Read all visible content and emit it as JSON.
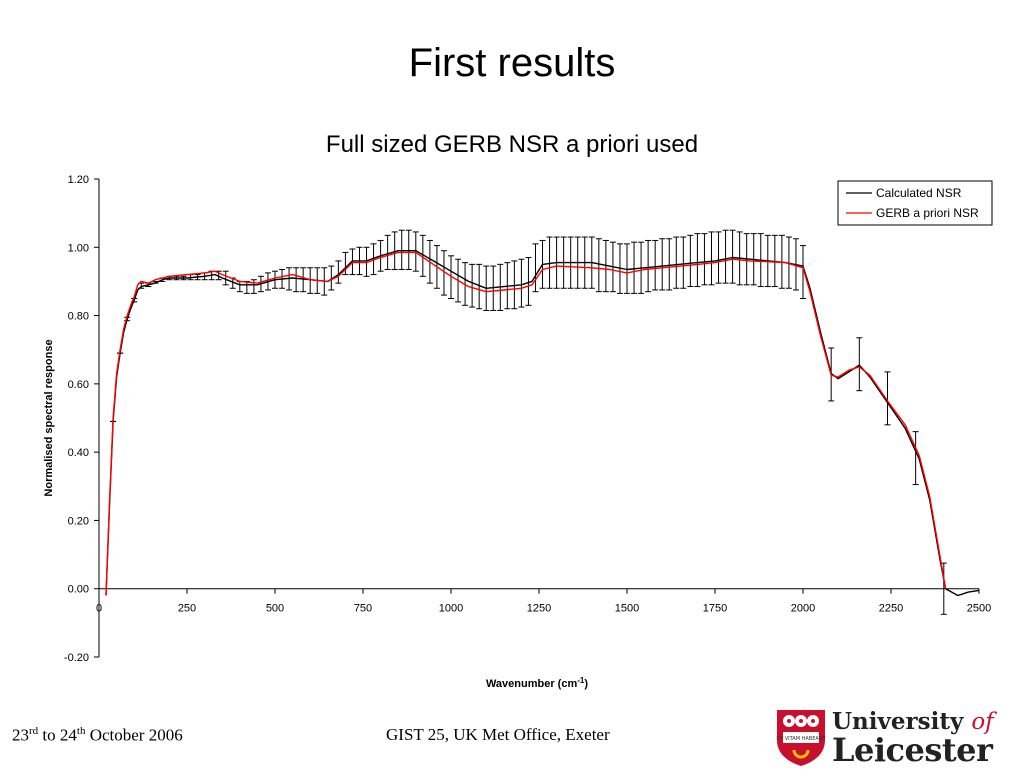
{
  "slide": {
    "title": "First results",
    "footer_left": {
      "day1": "23",
      "sup1": "rd",
      "mid": " to 24",
      "sup2": "th",
      "rest": " October 2006"
    },
    "footer_center": "GIST 25, UK Met Office, Exeter",
    "logo": {
      "line1": "University",
      "line1_of": "of",
      "line2": "Leicester",
      "shield_text": "UT VITAM HABEANT"
    }
  },
  "chart_data": {
    "type": "line",
    "title": "Full sized GERB NSR a priori used",
    "xlabel": "Wavenumber (cm",
    "xlabel_sup": "-1",
    "xlabel_end": ")",
    "ylabel": "Normalised spectral response",
    "xlim": [
      0,
      2500
    ],
    "ylim": [
      -0.2,
      1.2
    ],
    "xticks": [
      "0",
      "250",
      "500",
      "750",
      "1000",
      "1250",
      "1500",
      "1750",
      "2000",
      "2250",
      "2500"
    ],
    "yticks": [
      "1.20",
      "1.00",
      "0.80",
      "0.60",
      "0.40",
      "0.20",
      "0.00",
      "-0.20"
    ],
    "legend_position": "top-right",
    "grid": false,
    "series": [
      {
        "name": "Calculated NSR",
        "color": "#000000",
        "points": [
          [
            20,
            -0.02
          ],
          [
            30,
            0.25
          ],
          [
            40,
            0.49
          ],
          [
            50,
            0.62
          ],
          [
            60,
            0.69
          ],
          [
            70,
            0.75
          ],
          [
            80,
            0.79
          ],
          [
            90,
            0.82
          ],
          [
            100,
            0.845
          ],
          [
            110,
            0.875
          ],
          [
            120,
            0.885
          ],
          [
            140,
            0.89
          ],
          [
            160,
            0.895
          ],
          [
            180,
            0.905
          ],
          [
            200,
            0.91
          ],
          [
            250,
            0.91
          ],
          [
            300,
            0.915
          ],
          [
            330,
            0.92
          ],
          [
            350,
            0.91
          ],
          [
            400,
            0.89
          ],
          [
            450,
            0.89
          ],
          [
            500,
            0.905
          ],
          [
            550,
            0.91
          ],
          [
            600,
            0.905
          ],
          [
            650,
            0.9
          ],
          [
            680,
            0.92
          ],
          [
            720,
            0.96
          ],
          [
            760,
            0.96
          ],
          [
            800,
            0.975
          ],
          [
            850,
            0.99
          ],
          [
            900,
            0.99
          ],
          [
            950,
            0.96
          ],
          [
            1000,
            0.93
          ],
          [
            1050,
            0.9
          ],
          [
            1100,
            0.88
          ],
          [
            1150,
            0.885
          ],
          [
            1200,
            0.89
          ],
          [
            1230,
            0.9
          ],
          [
            1260,
            0.95
          ],
          [
            1300,
            0.955
          ],
          [
            1400,
            0.955
          ],
          [
            1450,
            0.945
          ],
          [
            1500,
            0.935
          ],
          [
            1550,
            0.94
          ],
          [
            1600,
            0.945
          ],
          [
            1700,
            0.955
          ],
          [
            1750,
            0.96
          ],
          [
            1800,
            0.97
          ],
          [
            1850,
            0.965
          ],
          [
            1950,
            0.955
          ],
          [
            2000,
            0.945
          ],
          [
            2020,
            0.88
          ],
          [
            2050,
            0.75
          ],
          [
            2080,
            0.63
          ],
          [
            2100,
            0.615
          ],
          [
            2130,
            0.635
          ],
          [
            2160,
            0.655
          ],
          [
            2190,
            0.62
          ],
          [
            2240,
            0.545
          ],
          [
            2290,
            0.47
          ],
          [
            2330,
            0.38
          ],
          [
            2360,
            0.26
          ],
          [
            2390,
            0.08
          ],
          [
            2405,
            0.0
          ],
          [
            2440,
            -0.02
          ],
          [
            2470,
            -0.01
          ],
          [
            2500,
            -0.005
          ]
        ]
      },
      {
        "name": "GERB a priori NSR",
        "color": "#ff0000",
        "points": [
          [
            20,
            -0.02
          ],
          [
            30,
            0.26
          ],
          [
            40,
            0.5
          ],
          [
            50,
            0.63
          ],
          [
            60,
            0.7
          ],
          [
            70,
            0.76
          ],
          [
            80,
            0.8
          ],
          [
            90,
            0.83
          ],
          [
            100,
            0.855
          ],
          [
            110,
            0.89
          ],
          [
            120,
            0.9
          ],
          [
            140,
            0.895
          ],
          [
            160,
            0.905
          ],
          [
            180,
            0.91
          ],
          [
            200,
            0.915
          ],
          [
            250,
            0.92
          ],
          [
            300,
            0.925
          ],
          [
            330,
            0.93
          ],
          [
            350,
            0.92
          ],
          [
            400,
            0.9
          ],
          [
            450,
            0.895
          ],
          [
            500,
            0.91
          ],
          [
            550,
            0.92
          ],
          [
            600,
            0.905
          ],
          [
            650,
            0.9
          ],
          [
            680,
            0.915
          ],
          [
            720,
            0.955
          ],
          [
            760,
            0.955
          ],
          [
            800,
            0.97
          ],
          [
            850,
            0.985
          ],
          [
            900,
            0.985
          ],
          [
            950,
            0.95
          ],
          [
            1000,
            0.915
          ],
          [
            1050,
            0.885
          ],
          [
            1100,
            0.87
          ],
          [
            1150,
            0.875
          ],
          [
            1200,
            0.88
          ],
          [
            1230,
            0.89
          ],
          [
            1260,
            0.935
          ],
          [
            1300,
            0.945
          ],
          [
            1400,
            0.94
          ],
          [
            1450,
            0.935
          ],
          [
            1500,
            0.925
          ],
          [
            1550,
            0.935
          ],
          [
            1600,
            0.94
          ],
          [
            1700,
            0.95
          ],
          [
            1750,
            0.955
          ],
          [
            1800,
            0.965
          ],
          [
            1850,
            0.96
          ],
          [
            1950,
            0.955
          ],
          [
            2000,
            0.94
          ],
          [
            2020,
            0.87
          ],
          [
            2050,
            0.74
          ],
          [
            2080,
            0.625
          ],
          [
            2100,
            0.62
          ],
          [
            2130,
            0.64
          ],
          [
            2160,
            0.65
          ],
          [
            2190,
            0.625
          ],
          [
            2240,
            0.55
          ],
          [
            2290,
            0.48
          ],
          [
            2330,
            0.39
          ],
          [
            2360,
            0.27
          ],
          [
            2390,
            0.09
          ],
          [
            2405,
            0.0
          ]
        ]
      }
    ],
    "error_bars": [
      [
        40,
        0.49,
        0.49
      ],
      [
        60,
        0.69,
        0.69
      ],
      [
        80,
        0.785,
        0.795
      ],
      [
        100,
        0.84,
        0.85
      ],
      [
        120,
        0.88,
        0.895
      ],
      [
        140,
        0.885,
        0.895
      ],
      [
        160,
        0.895,
        0.9
      ],
      [
        180,
        0.9,
        0.91
      ],
      [
        200,
        0.905,
        0.915
      ],
      [
        220,
        0.905,
        0.915
      ],
      [
        240,
        0.905,
        0.915
      ],
      [
        260,
        0.905,
        0.92
      ],
      [
        280,
        0.905,
        0.92
      ],
      [
        300,
        0.905,
        0.925
      ],
      [
        320,
        0.905,
        0.93
      ],
      [
        340,
        0.905,
        0.93
      ],
      [
        360,
        0.89,
        0.93
      ],
      [
        380,
        0.88,
        0.91
      ],
      [
        400,
        0.87,
        0.9
      ],
      [
        420,
        0.865,
        0.9
      ],
      [
        440,
        0.865,
        0.905
      ],
      [
        460,
        0.87,
        0.915
      ],
      [
        480,
        0.875,
        0.925
      ],
      [
        500,
        0.88,
        0.93
      ],
      [
        520,
        0.88,
        0.935
      ],
      [
        540,
        0.875,
        0.94
      ],
      [
        560,
        0.87,
        0.94
      ],
      [
        580,
        0.87,
        0.94
      ],
      [
        600,
        0.865,
        0.94
      ],
      [
        620,
        0.865,
        0.94
      ],
      [
        640,
        0.86,
        0.94
      ],
      [
        660,
        0.875,
        0.945
      ],
      [
        680,
        0.895,
        0.96
      ],
      [
        700,
        0.92,
        0.985
      ],
      [
        720,
        0.92,
        0.995
      ],
      [
        740,
        0.92,
        1.0
      ],
      [
        760,
        0.915,
        1.0
      ],
      [
        780,
        0.92,
        1.01
      ],
      [
        800,
        0.93,
        1.02
      ],
      [
        820,
        0.935,
        1.035
      ],
      [
        840,
        0.935,
        1.045
      ],
      [
        860,
        0.935,
        1.05
      ],
      [
        880,
        0.935,
        1.05
      ],
      [
        900,
        0.93,
        1.045
      ],
      [
        920,
        0.915,
        1.035
      ],
      [
        940,
        0.895,
        1.02
      ],
      [
        960,
        0.88,
        1.005
      ],
      [
        980,
        0.86,
        0.99
      ],
      [
        1000,
        0.85,
        0.975
      ],
      [
        1020,
        0.84,
        0.965
      ],
      [
        1040,
        0.83,
        0.955
      ],
      [
        1060,
        0.825,
        0.95
      ],
      [
        1080,
        0.82,
        0.95
      ],
      [
        1100,
        0.815,
        0.945
      ],
      [
        1120,
        0.815,
        0.945
      ],
      [
        1140,
        0.815,
        0.95
      ],
      [
        1160,
        0.82,
        0.955
      ],
      [
        1180,
        0.82,
        0.96
      ],
      [
        1200,
        0.825,
        0.965
      ],
      [
        1220,
        0.83,
        0.97
      ],
      [
        1240,
        0.87,
        1.01
      ],
      [
        1260,
        0.88,
        1.02
      ],
      [
        1280,
        0.88,
        1.03
      ],
      [
        1300,
        0.88,
        1.03
      ],
      [
        1320,
        0.88,
        1.03
      ],
      [
        1340,
        0.88,
        1.03
      ],
      [
        1360,
        0.88,
        1.03
      ],
      [
        1380,
        0.88,
        1.03
      ],
      [
        1400,
        0.88,
        1.03
      ],
      [
        1420,
        0.87,
        1.025
      ],
      [
        1440,
        0.87,
        1.02
      ],
      [
        1460,
        0.87,
        1.015
      ],
      [
        1480,
        0.865,
        1.01
      ],
      [
        1500,
        0.865,
        1.01
      ],
      [
        1520,
        0.865,
        1.015
      ],
      [
        1540,
        0.865,
        1.015
      ],
      [
        1560,
        0.87,
        1.02
      ],
      [
        1580,
        0.875,
        1.02
      ],
      [
        1600,
        0.875,
        1.025
      ],
      [
        1620,
        0.875,
        1.025
      ],
      [
        1640,
        0.88,
        1.03
      ],
      [
        1660,
        0.88,
        1.03
      ],
      [
        1680,
        0.885,
        1.035
      ],
      [
        1700,
        0.885,
        1.04
      ],
      [
        1720,
        0.89,
        1.04
      ],
      [
        1740,
        0.89,
        1.045
      ],
      [
        1760,
        0.895,
        1.045
      ],
      [
        1780,
        0.895,
        1.05
      ],
      [
        1800,
        0.895,
        1.05
      ],
      [
        1820,
        0.89,
        1.045
      ],
      [
        1840,
        0.89,
        1.04
      ],
      [
        1860,
        0.89,
        1.04
      ],
      [
        1880,
        0.885,
        1.04
      ],
      [
        1900,
        0.885,
        1.035
      ],
      [
        1920,
        0.885,
        1.035
      ],
      [
        1940,
        0.88,
        1.035
      ],
      [
        1960,
        0.88,
        1.03
      ],
      [
        1980,
        0.875,
        1.025
      ],
      [
        2000,
        0.85,
        1.005
      ],
      [
        2080,
        0.55,
        0.705
      ],
      [
        2160,
        0.58,
        0.735
      ],
      [
        2240,
        0.48,
        0.635
      ],
      [
        2320,
        0.305,
        0.46
      ],
      [
        2400,
        -0.075,
        0.075
      ]
    ]
  }
}
